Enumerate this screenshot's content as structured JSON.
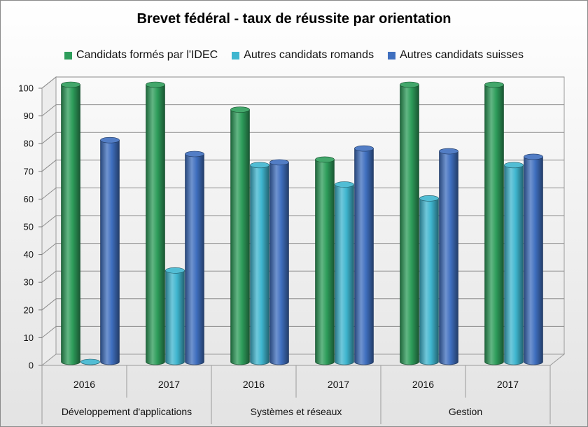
{
  "chart_data": {
    "type": "bar",
    "title": "Brevet fédéral - taux de réussite par orientation",
    "xlabel": "",
    "ylabel": "",
    "ylim": [
      0,
      100
    ],
    "yticks": [
      0,
      10,
      20,
      30,
      40,
      50,
      60,
      70,
      80,
      90,
      100
    ],
    "grid": true,
    "legend_position": "top",
    "groups": [
      "Développement d'applications",
      "Systèmes et réseaux",
      "Gestion"
    ],
    "categories": [
      "2016",
      "2017",
      "2016",
      "2017",
      "2016",
      "2017"
    ],
    "series": [
      {
        "name": "Candidats formés par l'IDEC",
        "color": "#2e9d5b",
        "values": [
          100,
          100,
          91,
          73,
          100,
          100
        ]
      },
      {
        "name": "Autres candidats romands",
        "color": "#3fb6cf",
        "values": [
          0,
          33,
          71,
          64,
          59,
          71
        ]
      },
      {
        "name": "Autres candidats suisses",
        "color": "#3f6fbf",
        "values": [
          80,
          75,
          72,
          77,
          76,
          74
        ]
      }
    ]
  }
}
